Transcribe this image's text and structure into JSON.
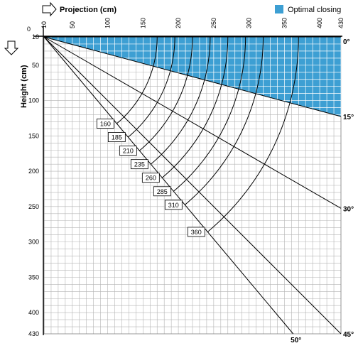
{
  "x_axis": {
    "title": "Projection (cm)",
    "zero_label": "0",
    "ticks": [
      "10",
      "50",
      "100",
      "150",
      "200",
      "250",
      "300",
      "350",
      "400",
      "430"
    ],
    "tick_values": [
      10,
      50,
      100,
      150,
      200,
      250,
      300,
      350,
      400,
      430
    ]
  },
  "y_axis": {
    "title": "Height (cm)",
    "ticks": [
      "10",
      "50",
      "100",
      "150",
      "200",
      "250",
      "300",
      "350",
      "400",
      "430"
    ],
    "tick_values": [
      10,
      50,
      100,
      150,
      200,
      250,
      300,
      350,
      400,
      430
    ]
  },
  "legend": {
    "label": "Optimal closing",
    "color": "#3d9fd3"
  },
  "angles": [
    {
      "label": "0°",
      "degrees": 0
    },
    {
      "label": "15°",
      "degrees": 15
    },
    {
      "label": "30°",
      "degrees": 30
    },
    {
      "label": "45°",
      "degrees": 45
    },
    {
      "label": "50°",
      "degrees": 50
    }
  ],
  "radii": [
    {
      "label": "160",
      "value": 160
    },
    {
      "label": "185",
      "value": 185
    },
    {
      "label": "210",
      "value": 210
    },
    {
      "label": "235",
      "value": 235
    },
    {
      "label": "260",
      "value": 260
    },
    {
      "label": "285",
      "value": 285
    },
    {
      "label": "310",
      "value": 310
    },
    {
      "label": "360",
      "value": 360
    }
  ],
  "grid_step_cm": 10,
  "colors": {
    "grid": "#b4b4b4",
    "line": "#000000",
    "fill": "#3d9fd3"
  }
}
